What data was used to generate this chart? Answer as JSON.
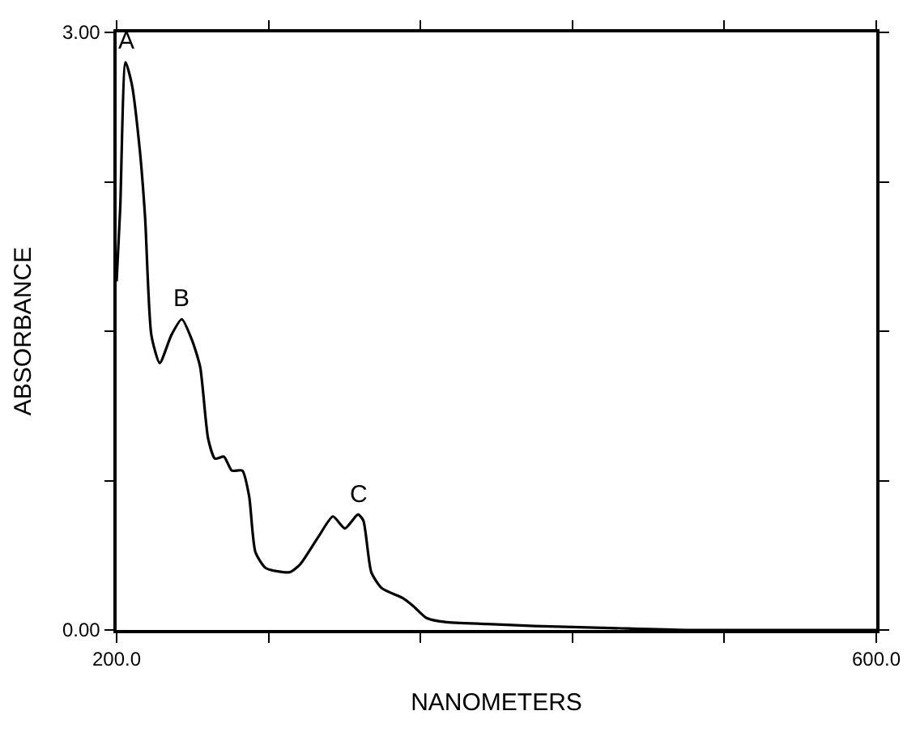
{
  "chart_data": {
    "type": "line",
    "xlabel": "NANOMETERS",
    "ylabel": "ABSORBANCE",
    "x": [
      200,
      201.9,
      204.7,
      208,
      212.2,
      215,
      218.3,
      222.7,
      228.8,
      234.3,
      239.9,
      244,
      248.2,
      251.8,
      256.5,
      260.7,
      266.2,
      269.8,
      273.1,
      278.7,
      291.1,
      296.7,
      306.4,
      313.9,
      320.2,
      327.1,
      329.9,
      334.1,
      339.6,
      350.7,
      356.2,
      363.2,
      372.9,
      395,
      420,
      460,
      500,
      600
    ],
    "series": [
      {
        "color": "#000000",
        "values": [
          1.75,
          2.12,
          2.85,
          2.74,
          2.41,
          2.07,
          1.48,
          1.34,
          1.48,
          1.56,
          1.45,
          1.32,
          0.96,
          0.86,
          0.87,
          0.8,
          0.8,
          0.67,
          0.39,
          0.31,
          0.29,
          0.33,
          0.47,
          0.57,
          0.51,
          0.58,
          0.55,
          0.29,
          0.21,
          0.16,
          0.12,
          0.06,
          0.04,
          0.03,
          0.02,
          0.01,
          0,
          0
        ]
      }
    ],
    "annotations": [
      {
        "text": "A",
        "x": 204.7,
        "y": 2.85
      },
      {
        "text": "B",
        "x": 234.3,
        "y": 1.56
      },
      {
        "text": "C",
        "x": 327.1,
        "y": 0.58
      }
    ],
    "xlim": [
      200,
      600
    ],
    "ylim": [
      0,
      3
    ],
    "xticks": [
      {
        "value": 200,
        "label": "200.0"
      },
      {
        "value": 280,
        "label": null
      },
      {
        "value": 360,
        "label": null
      },
      {
        "value": 440,
        "label": null
      },
      {
        "value": 520,
        "label": null
      },
      {
        "value": 600,
        "label": "600.0"
      }
    ],
    "yticks": [
      {
        "value": 0,
        "label": "0.00"
      },
      {
        "value": 0.75,
        "label": null
      },
      {
        "value": 1.5,
        "label": null
      },
      {
        "value": 2.25,
        "label": null
      },
      {
        "value": 3,
        "label": "3.00"
      }
    ],
    "marker": "none",
    "line_style": "solid"
  }
}
